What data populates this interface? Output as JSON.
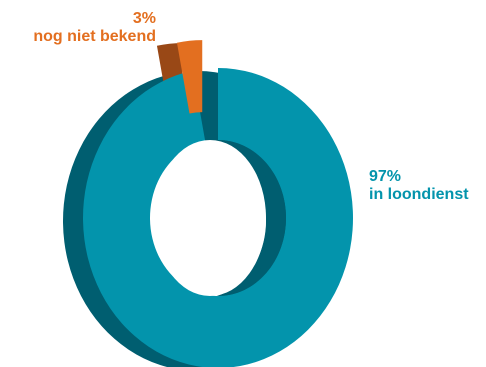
{
  "chart_data": {
    "type": "pie",
    "style": "3d-donut",
    "slices": [
      {
        "label": "in loondienst",
        "percent_label": "97%",
        "value": 97,
        "color": "#0394ac",
        "shade": "#005e70"
      },
      {
        "label": "nog niet bekend",
        "percent_label": "3%",
        "value": 3,
        "color": "#e36f20",
        "shade": "#994816"
      }
    ]
  }
}
